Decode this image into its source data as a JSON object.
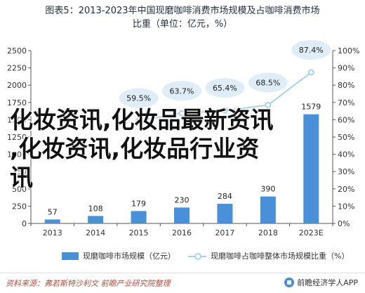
{
  "title_line1": "图表5：2013-2023年中国现磨咖啡消费市场规模及占咖啡消费市场",
  "title_line2": "比重（单位：亿元，%）",
  "chart_data": {
    "type": "bar",
    "categories": [
      "2013",
      "2014",
      "2015",
      "2016",
      "2017",
      "2018",
      "2023E"
    ],
    "series": [
      {
        "name": "现磨咖啡市场规模（亿元）",
        "type": "bar",
        "axis": "left",
        "values": [
          57,
          108,
          179,
          230,
          284,
          390,
          1579
        ],
        "labels": [
          "57",
          "108",
          "179",
          "230",
          "284",
          "390",
          "1579"
        ]
      },
      {
        "name": "现磨咖啡占咖啡整体市场规模比重（%）",
        "type": "line",
        "axis": "right",
        "values": [
          null,
          null,
          59.5,
          63.7,
          65.4,
          68.5,
          87.4
        ],
        "labels": [
          "",
          "",
          "59.5%",
          "63.7%",
          "65.4%",
          "68.5%",
          "87.4%"
        ]
      }
    ],
    "y_left": {
      "min": 0,
      "max": 2500,
      "ticks": [
        "0",
        "250",
        "500",
        "750",
        "1000",
        "1250",
        "1500",
        "1750",
        "2000",
        "2250",
        "2500"
      ]
    },
    "y_right": {
      "min": 0,
      "max": 100,
      "ticks": [
        "0%",
        "10%",
        "20%",
        "30%",
        "40%",
        "50%",
        "60%",
        "70%",
        "80%",
        "90%",
        "100%"
      ]
    },
    "grid": false,
    "legend_position": "bottom",
    "colors": {
      "bar": "#4a90d9",
      "line": "#a7d2ee",
      "bubble": "#deedf8",
      "axis": "#555555"
    }
  },
  "legend": {
    "bar_label": "现磨咖啡市场规模（亿元）",
    "line_label": "现磨咖啡占咖啡整体市场规模比重（%）"
  },
  "footer": {
    "source": "资料来源：弗若斯特沙利文 前瞻产业研究院整理",
    "brand": "前瞻经济学人APP",
    "brand_icon": "brand-logo-icon"
  },
  "watermark": {
    "line1": "化妆资讯,化妆品最新资讯",
    "line2": ",化妆资讯,化妆品行业资",
    "line3": "讯"
  }
}
